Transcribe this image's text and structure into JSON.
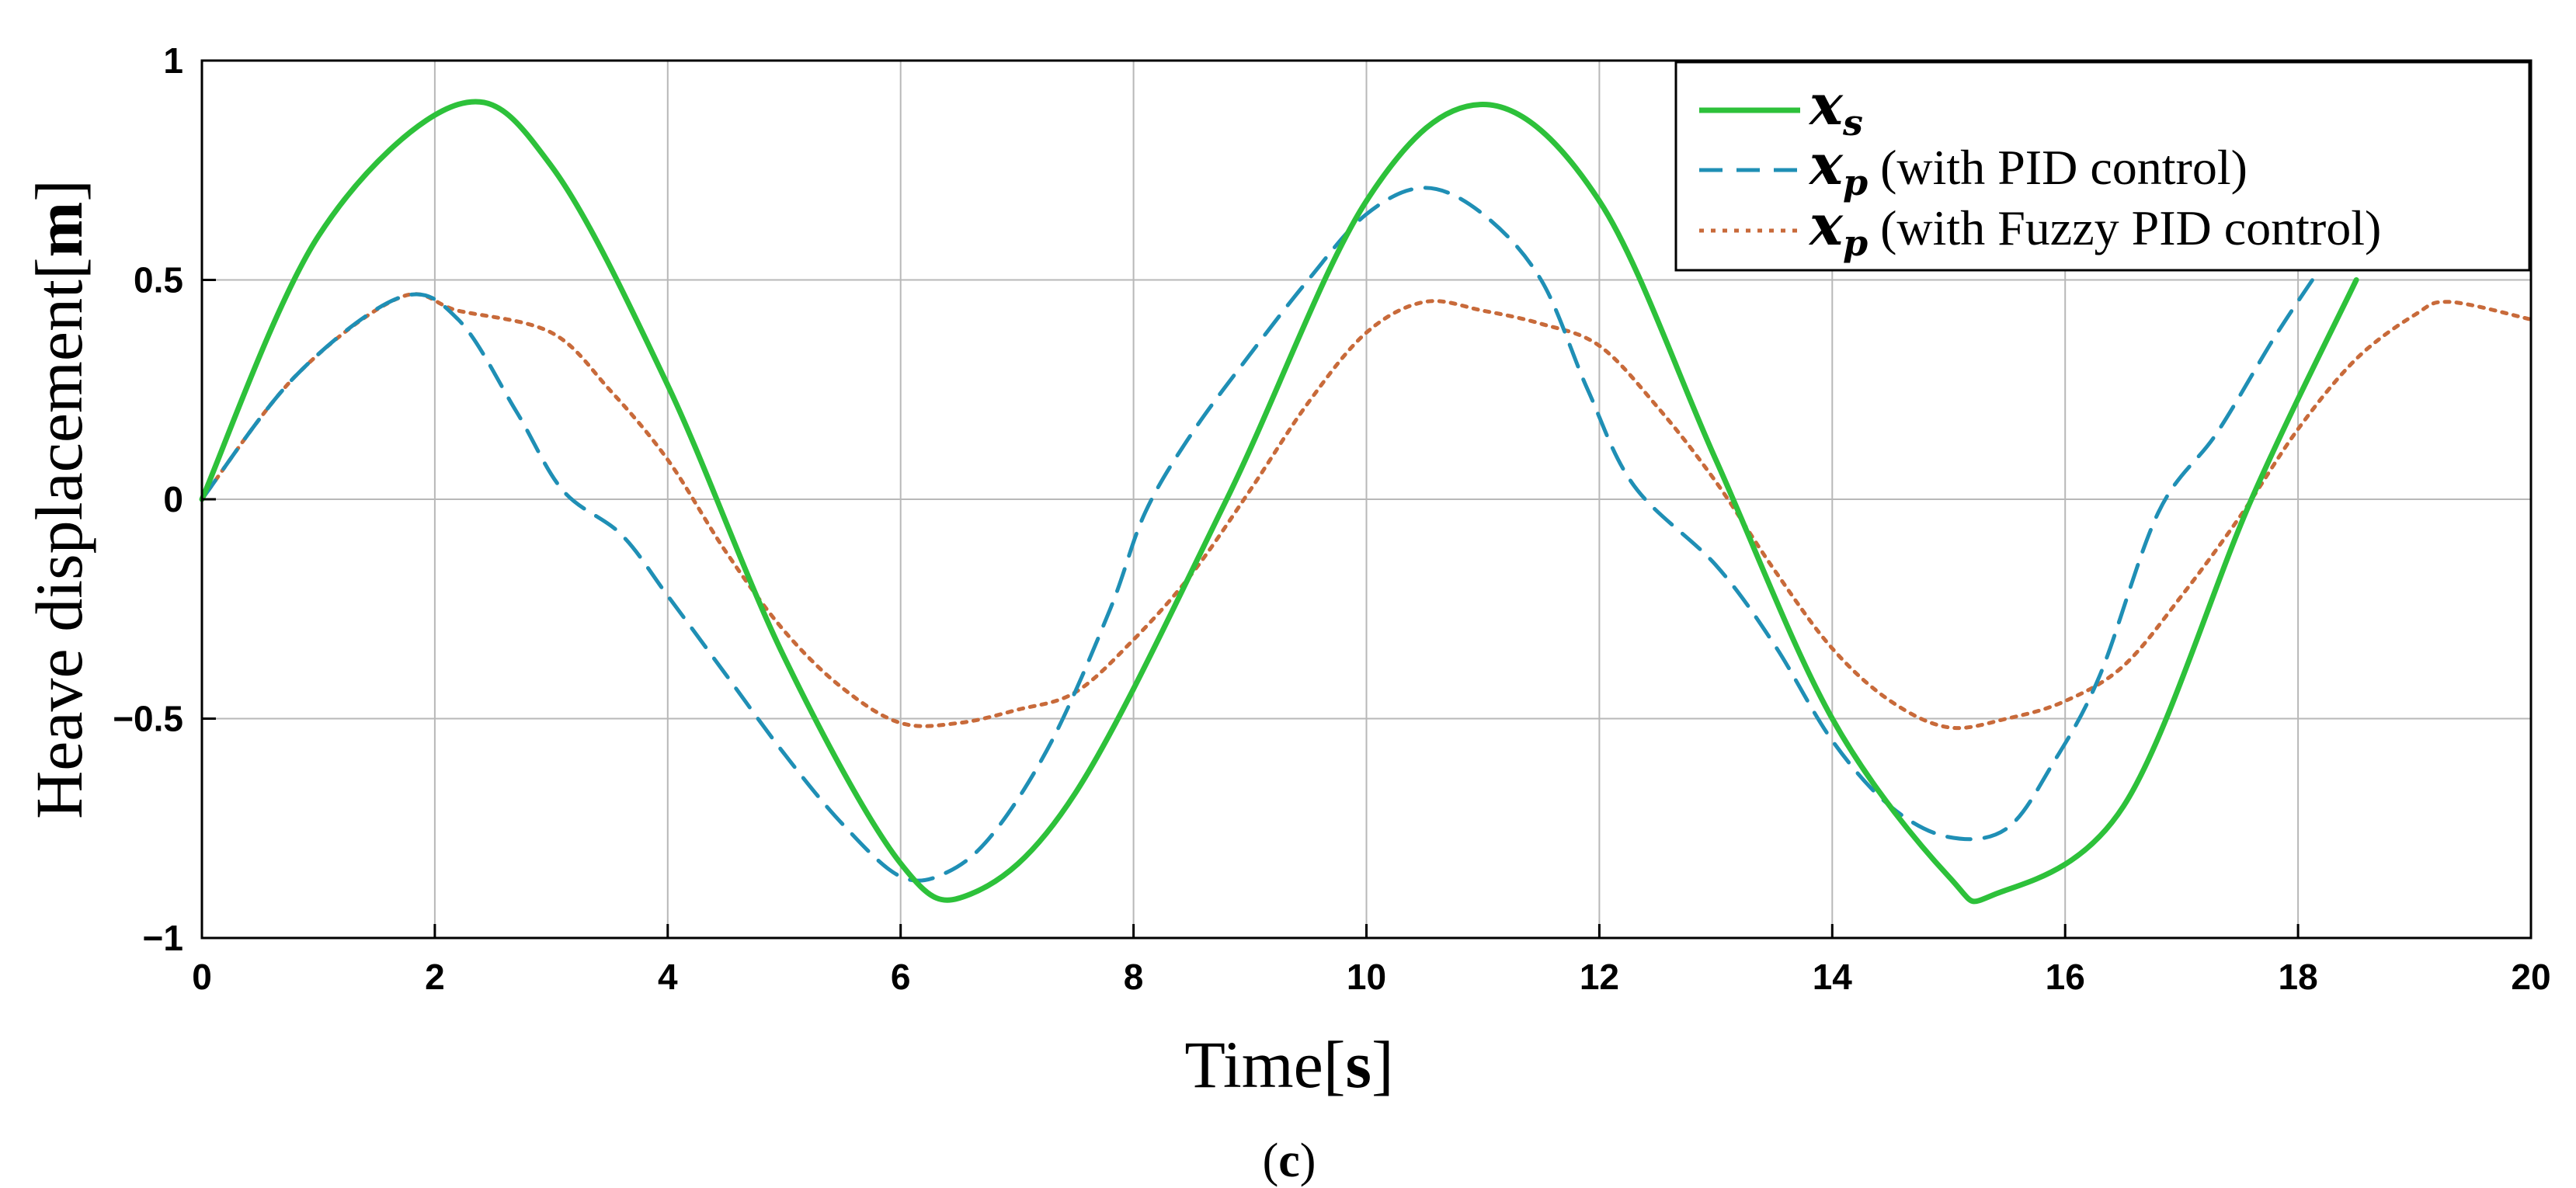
{
  "chart_data": {
    "type": "line",
    "title": "",
    "xlabel": "Time",
    "xlabel_unit": "s",
    "ylabel": "Heave displacement",
    "ylabel_unit": "m",
    "xlim": [
      0,
      20
    ],
    "ylim": [
      -1,
      1
    ],
    "xticks": [
      0,
      2,
      4,
      6,
      8,
      10,
      12,
      14,
      16,
      18,
      20
    ],
    "xtick_labels": [
      "0",
      "2",
      "4",
      "6",
      "8",
      "10",
      "12",
      "14",
      "16",
      "18",
      "20"
    ],
    "yticks": [
      -1,
      -0.5,
      0,
      0.5,
      1
    ],
    "ytick_labels": [
      "−1",
      "−0.5",
      "0",
      "0.5",
      "1"
    ],
    "grid": true,
    "legend_position": "top-right",
    "caption_open": "(",
    "caption": "c",
    "caption_close": ")",
    "series": [
      {
        "name": "x_s",
        "legend_symbol": "x",
        "legend_subscript": "s",
        "legend_suffix": "",
        "color": "#2dc13a",
        "style": "solid",
        "x": [
          0,
          1,
          2.2,
          3,
          4,
          5,
          6,
          6.6,
          7.5,
          8.8,
          10,
          11,
          12,
          13,
          14,
          15,
          15.4,
          16.5,
          17.6,
          18.5
        ],
        "y": [
          0,
          0.6,
          0.9,
          0.76,
          0.26,
          -0.36,
          -0.83,
          -0.9,
          -0.67,
          0,
          0.68,
          0.9,
          0.68,
          0.09,
          -0.5,
          -0.86,
          -0.9,
          -0.7,
          0,
          0.5
        ]
      },
      {
        "name": "x_p (with PID control)",
        "legend_symbol": "x",
        "legend_subscript": "p",
        "legend_suffix": " (with PID control)",
        "color": "#1f8fb5",
        "style": "dashed",
        "x": [
          0,
          0.8,
          1.7,
          2.2,
          2.7,
          3.1,
          3.6,
          4,
          4.5,
          5,
          5.5,
          6,
          6.4,
          6.8,
          7.3,
          7.8,
          8.1,
          8.5,
          9,
          9.5,
          10,
          10.5,
          11,
          11.5,
          11.9,
          12.3,
          13,
          13.5,
          14,
          14.5,
          15,
          15.5,
          15.9,
          16.3,
          16.8,
          17.3,
          17.8,
          18.2
        ],
        "y": [
          0,
          0.28,
          0.46,
          0.41,
          0.2,
          0.02,
          -0.08,
          -0.22,
          -0.4,
          -0.58,
          -0.74,
          -0.86,
          -0.85,
          -0.76,
          -0.55,
          -0.25,
          -0.03,
          0.15,
          0.33,
          0.5,
          0.65,
          0.71,
          0.65,
          0.5,
          0.25,
          0.03,
          -0.15,
          -0.33,
          -0.55,
          -0.7,
          -0.77,
          -0.75,
          -0.6,
          -0.4,
          -0.03,
          0.15,
          0.37,
          0.53
        ]
      },
      {
        "name": "x_p (with Fuzzy PID control)",
        "legend_symbol": "x",
        "legend_subscript": "p",
        "legend_suffix": " (with Fuzzy PID control)",
        "color": "#c86a3a",
        "style": "dotted",
        "x": [
          0,
          0.8,
          1.7,
          2.2,
          3,
          3.5,
          4,
          4.5,
          5,
          5.5,
          6,
          6.5,
          7,
          7.5,
          8,
          8.5,
          9,
          9.5,
          10,
          10.5,
          11,
          11.5,
          12,
          12.5,
          13,
          13.5,
          14,
          14.5,
          15,
          15.5,
          16,
          16.5,
          17,
          17.5,
          18,
          18.5,
          19,
          19.3,
          20
        ],
        "y": [
          0,
          0.28,
          0.46,
          0.43,
          0.38,
          0.25,
          0.09,
          -0.12,
          -0.3,
          -0.43,
          -0.51,
          -0.51,
          -0.48,
          -0.44,
          -0.32,
          -0.17,
          0.02,
          0.22,
          0.38,
          0.45,
          0.43,
          0.4,
          0.35,
          0.21,
          0.04,
          -0.16,
          -0.34,
          -0.46,
          -0.52,
          -0.5,
          -0.46,
          -0.38,
          -0.22,
          -0.04,
          0.16,
          0.32,
          0.42,
          0.45,
          0.41
        ]
      }
    ]
  }
}
